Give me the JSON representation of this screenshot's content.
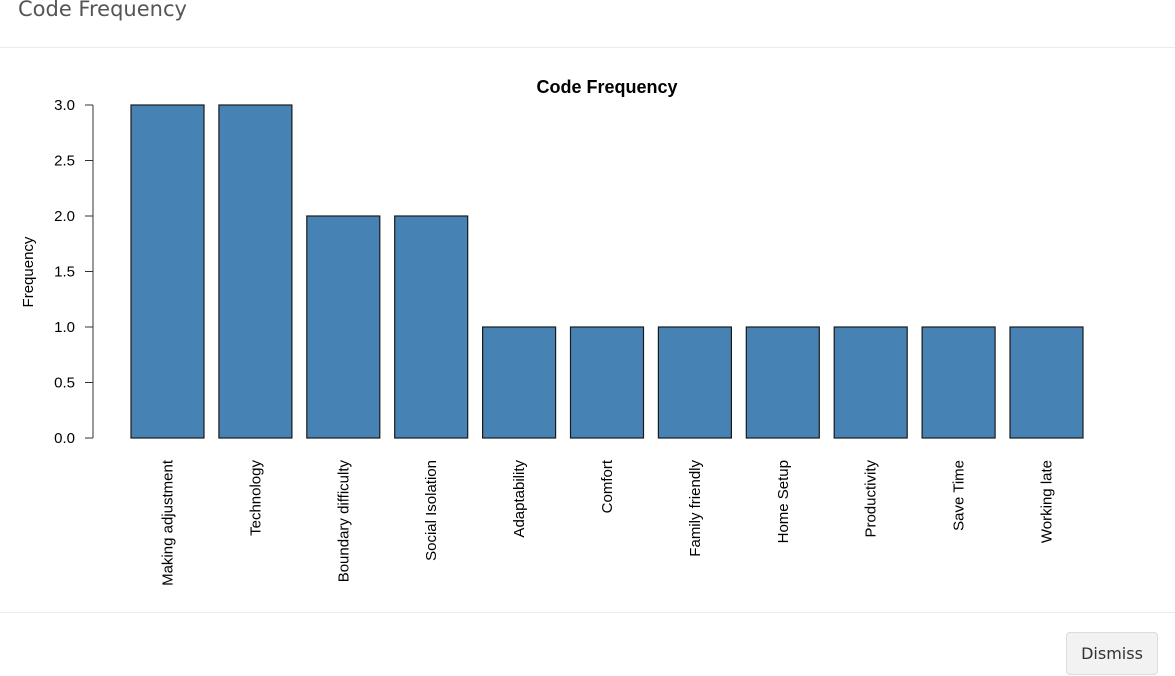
{
  "modal": {
    "title": "Code Frequency",
    "dismiss_label": "Dismiss"
  },
  "colors": {
    "bar_fill": "#4682B4",
    "bar_stroke": "#1a1a1a",
    "axis": "#333333",
    "text": "#000000"
  },
  "chart_data": {
    "type": "bar",
    "title": "Code Frequency",
    "xlabel": "",
    "ylabel": "Frequency",
    "categories": [
      "Making adjustment",
      "Technology",
      "Boundary difficulty",
      "Social Isolation",
      "Adaptability",
      "Comfort",
      "Family friendly",
      "Home Setup",
      "Productivity",
      "Save Time",
      "Working late"
    ],
    "values": [
      3,
      3,
      2,
      2,
      1,
      1,
      1,
      1,
      1,
      1,
      1
    ],
    "ylim": [
      0,
      3
    ],
    "yticks": [
      "0.0",
      "0.5",
      "1.0",
      "1.5",
      "2.0",
      "2.5",
      "3.0"
    ],
    "grid": false,
    "legend": "none"
  }
}
